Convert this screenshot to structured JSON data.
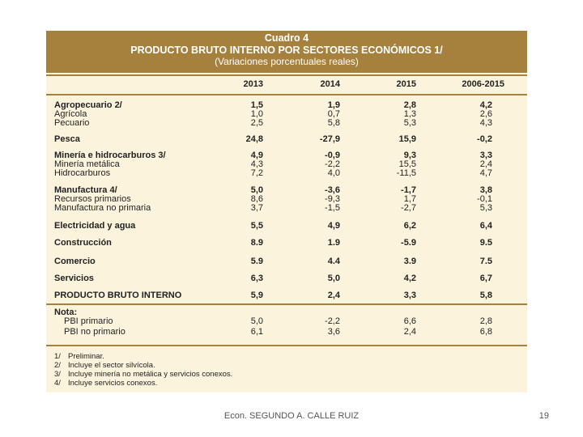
{
  "header": {
    "title": "Cuadro 4",
    "subtitle": "PRODUCTO BRUTO INTERNO POR SECTORES ECONÓMICOS 1/",
    "note": "(Variaciones porcentuales reales)"
  },
  "columns": [
    "2013",
    "2014",
    "2015",
    "2006-2015"
  ],
  "rows": [
    {
      "label": "Agropecuario 2/",
      "values": [
        "1,5",
        "1,9",
        "2,8",
        "4,2"
      ],
      "bold": true
    },
    {
      "label": "Agrícola",
      "values": [
        "1,0",
        "0,7",
        "1,3",
        "2,6"
      ],
      "bold": false
    },
    {
      "label": "Pecuario",
      "values": [
        "2,5",
        "5,8",
        "5,3",
        "4,3"
      ],
      "bold": false
    },
    {
      "label": "Pesca",
      "values": [
        "24,8",
        "-27,9",
        "15,9",
        "-0,2"
      ],
      "bold": true
    },
    {
      "label": "Minería e hidrocarburos 3/",
      "values": [
        "4,9",
        "-0,9",
        "9,3",
        "3,3"
      ],
      "bold": true
    },
    {
      "label": "Minería metálica",
      "values": [
        "4,3",
        "-2,2",
        "15,5",
        "2,4"
      ],
      "bold": false
    },
    {
      "label": "Hidrocarburos",
      "values": [
        "7,2",
        "4,0",
        "-11,5",
        "4,7"
      ],
      "bold": false
    },
    {
      "label": "Manufactura 4/",
      "values": [
        "5,0",
        "-3,6",
        "-1,7",
        "3,8"
      ],
      "bold": true
    },
    {
      "label": "Recursos primarios",
      "values": [
        "8,6",
        "-9,3",
        "1,7",
        "-0,1"
      ],
      "bold": false
    },
    {
      "label": "Manufactura no primaria",
      "values": [
        "3,7",
        "-1,5",
        "-2,7",
        "5,3"
      ],
      "bold": false
    },
    {
      "label": "Electricidad y agua",
      "values": [
        "5,5",
        "4,9",
        "6,2",
        "6,4"
      ],
      "bold": true
    },
    {
      "label": "Construcción",
      "values": [
        "8.9",
        "1.9",
        "-5.9",
        "9.5"
      ],
      "bold": true
    },
    {
      "label": "Comercio",
      "values": [
        "5.9",
        "4.4",
        "3.9",
        "7.5"
      ],
      "bold": true
    },
    {
      "label": "Servicios",
      "values": [
        "6,3",
        "5,0",
        "4,2",
        "6,7"
      ],
      "bold": true
    },
    {
      "label": "PRODUCTO BRUTO INTERNO",
      "values": [
        "5,9",
        "2,4",
        "3,3",
        "5,8"
      ],
      "bold": true
    }
  ],
  "note_block": {
    "label": "Nota:",
    "rows": [
      {
        "label": "PBI primario",
        "values": [
          "5,0",
          "-2,2",
          "6,6",
          "2,8"
        ]
      },
      {
        "label": "PBI no primario",
        "values": [
          "6,1",
          "3,6",
          "2,4",
          "6,8"
        ]
      }
    ]
  },
  "footnotes": [
    {
      "num": "1/",
      "text": "Preliminar."
    },
    {
      "num": "2/",
      "text": "Incluye el sector silvícola."
    },
    {
      "num": "3/",
      "text": "Incluye minería no metálica y servicios conexos."
    },
    {
      "num": "4/",
      "text": "Incluye servicios conexos."
    }
  ],
  "footer": {
    "author": "Econ. SEGUNDO A. CALLE RUIZ",
    "page": "19"
  },
  "colors": {
    "header_bg": "#a6813d",
    "table_bg": "#fbf3dc"
  }
}
